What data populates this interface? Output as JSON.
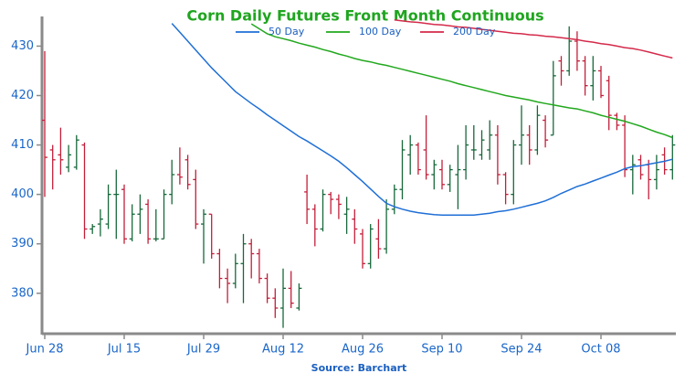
{
  "chart_data": {
    "type": "ohlc",
    "title": "Corn Daily Futures Front Month Continuous",
    "source": "Source: Barchart",
    "categories": [
      "Jun 28",
      null,
      null,
      null,
      null,
      null,
      null,
      null,
      null,
      null,
      "Jul 15",
      null,
      null,
      null,
      null,
      null,
      null,
      null,
      null,
      null,
      "Jul 29",
      null,
      null,
      null,
      null,
      null,
      null,
      null,
      null,
      null,
      "Aug 12",
      null,
      null,
      null,
      null,
      null,
      null,
      null,
      null,
      null,
      "Aug 26",
      null,
      null,
      null,
      null,
      null,
      null,
      null,
      null,
      null,
      "Sep 10",
      null,
      null,
      null,
      null,
      null,
      null,
      null,
      null,
      null,
      "Sep 24",
      null,
      null,
      null,
      null,
      null,
      null,
      null,
      null,
      null,
      "Oct 08",
      null,
      null,
      null,
      null,
      null,
      null,
      null,
      null,
      null
    ],
    "open": [
      415,
      409,
      408,
      405.5,
      405.5,
      410,
      393,
      394,
      394,
      400,
      401,
      391,
      396,
      398,
      391,
      391,
      400,
      404,
      407,
      403,
      394,
      396,
      388,
      383,
      382,
      386,
      390,
      388,
      383,
      379,
      377,
      381,
      377,
      400.5,
      397,
      393,
      400,
      399,
      396,
      395,
      392,
      386,
      391,
      389,
      397,
      401,
      408,
      410,
      409,
      404,
      405,
      402,
      404,
      405,
      409,
      408,
      409,
      412,
      404,
      400,
      410,
      412,
      409,
      415,
      412,
      427,
      425,
      431,
      427,
      422,
      425,
      423,
      416,
      414,
      405,
      407,
      406,
      403,
      408,
      405
    ],
    "high": [
      429,
      410,
      413.5,
      410,
      412,
      410.5,
      394,
      397,
      402,
      405,
      402,
      398,
      400,
      399,
      397,
      401,
      407,
      409.5,
      408,
      405,
      397,
      396,
      389,
      385,
      388,
      392,
      391,
      389,
      384,
      381,
      385,
      384.5,
      382,
      404,
      398,
      401,
      400.5,
      400,
      399.5,
      397,
      393,
      394,
      395,
      399,
      402,
      411,
      412,
      410.5,
      416,
      407,
      407,
      406,
      410,
      414,
      414,
      413,
      415,
      414,
      404.5,
      411,
      418,
      414,
      418,
      416,
      427,
      428,
      434,
      433,
      428,
      428,
      426,
      424,
      416.5,
      416,
      408,
      408,
      407,
      408,
      409.5,
      412
    ],
    "low": [
      399.5,
      401,
      404,
      404.5,
      405,
      391,
      392,
      391.5,
      393,
      391,
      390,
      390.5,
      392,
      390,
      390.5,
      391,
      398,
      402,
      401,
      393,
      386,
      387,
      381,
      378,
      381,
      378,
      383,
      382,
      378,
      375,
      373,
      377,
      376.5,
      394,
      389.5,
      392.5,
      396,
      395,
      392,
      390,
      385,
      385,
      387,
      388,
      396,
      399,
      404,
      404,
      403,
      401,
      401,
      400.5,
      397,
      403,
      407,
      407,
      407,
      402,
      398,
      398,
      406,
      406,
      408,
      409.5,
      412,
      422,
      424,
      425,
      420,
      419,
      419.5,
      413,
      413,
      403.5,
      400,
      403,
      399,
      401,
      404,
      403
    ],
    "close": [
      407.5,
      407,
      407,
      408,
      411,
      393,
      393.5,
      395,
      400,
      400,
      391,
      396,
      397,
      391,
      391,
      400,
      404,
      403.5,
      402,
      394,
      396,
      388,
      383,
      382,
      386,
      390,
      388,
      383,
      379,
      377,
      381,
      378,
      381,
      397,
      393,
      400,
      399,
      398,
      397,
      393,
      386,
      393,
      389,
      397,
      401,
      409,
      410,
      405,
      404,
      406,
      402,
      405,
      405,
      410,
      409,
      411,
      412,
      404,
      400,
      410,
      412,
      409,
      416,
      411,
      424,
      425,
      431,
      427,
      422,
      425,
      420,
      416,
      414,
      405,
      406,
      404,
      403,
      405,
      405,
      410
    ],
    "up_color": "#17683a",
    "down_color": "#c21f3a",
    "series": [
      {
        "name": "50 Day",
        "color": "#1f6fd6",
        "values": [
          null,
          null,
          null,
          null,
          null,
          null,
          null,
          null,
          null,
          null,
          null,
          null,
          null,
          null,
          null,
          null,
          434.6,
          432.8,
          431,
          429.2,
          427.4,
          425.6,
          424,
          422.4,
          420.8,
          419.6,
          418.4,
          417.3,
          416.1,
          415,
          413.9,
          412.8,
          411.7,
          410.8,
          409.8,
          408.8,
          407.8,
          406.7,
          405.4,
          404,
          402.6,
          401.1,
          399.6,
          398.2,
          397.5,
          397,
          396.6,
          396.3,
          396.1,
          395.9,
          395.8,
          395.8,
          395.8,
          395.8,
          395.8,
          396,
          396.2,
          396.5,
          396.7,
          397,
          397.4,
          397.8,
          398.2,
          398.7,
          399.4,
          400.2,
          400.9,
          401.6,
          402.1,
          402.7,
          403.3,
          403.9,
          404.5,
          405.2,
          405.6,
          405.8,
          406.1,
          406.4,
          406.7,
          407.1
        ]
      },
      {
        "name": "100 Day",
        "color": "#22a81e",
        "values": [
          null,
          null,
          null,
          null,
          null,
          null,
          null,
          null,
          null,
          null,
          null,
          null,
          null,
          null,
          null,
          null,
          null,
          null,
          null,
          null,
          null,
          null,
          null,
          null,
          null,
          null,
          434.5,
          433.5,
          432.5,
          431.9,
          431.5,
          431.1,
          430.6,
          430.2,
          429.8,
          429.3,
          428.9,
          428.4,
          428,
          427.5,
          427.1,
          426.8,
          426.4,
          426.1,
          425.7,
          425.3,
          424.9,
          424.5,
          424.1,
          423.7,
          423.3,
          422.9,
          422.4,
          422,
          421.6,
          421.2,
          420.8,
          420.4,
          420,
          419.7,
          419.4,
          419.1,
          418.7,
          418.4,
          418.1,
          417.8,
          417.5,
          417.3,
          416.9,
          416.5,
          416,
          415.6,
          415.2,
          414.8,
          414.3,
          413.8,
          413.2,
          412.6,
          412.1,
          411.5
        ]
      },
      {
        "name": "200 Day",
        "color": "#d42a4a",
        "values": [
          null,
          null,
          null,
          null,
          null,
          null,
          null,
          null,
          null,
          null,
          null,
          null,
          null,
          null,
          null,
          null,
          null,
          null,
          null,
          null,
          null,
          null,
          null,
          null,
          null,
          null,
          null,
          null,
          null,
          null,
          null,
          null,
          null,
          null,
          null,
          null,
          null,
          null,
          null,
          null,
          null,
          null,
          null,
          null,
          435.3,
          435.1,
          434.9,
          434.8,
          434.6,
          434.4,
          434.3,
          434.1,
          433.9,
          433.8,
          433.6,
          433.4,
          433.2,
          433,
          432.8,
          432.6,
          432.5,
          432.3,
          432.2,
          432,
          431.9,
          431.7,
          431.5,
          431.3,
          431,
          430.8,
          430.5,
          430.3,
          430,
          429.7,
          429.5,
          429.2,
          428.8,
          428.4,
          428,
          427.6
        ]
      }
    ],
    "ylim": [
      372,
      436
    ],
    "yticks": [
      380,
      390,
      400,
      410,
      420,
      430
    ]
  }
}
